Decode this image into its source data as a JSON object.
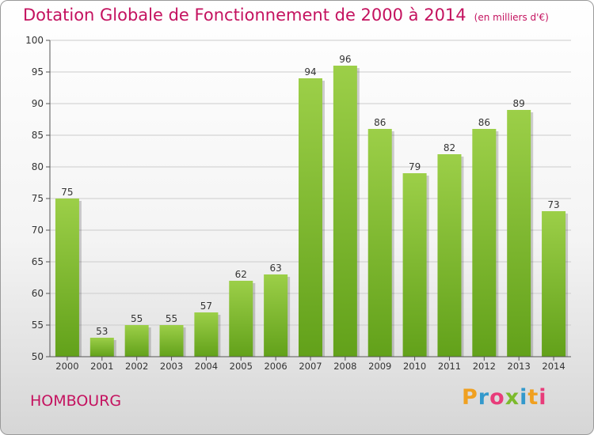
{
  "header": {
    "title": "Dotation Globale de Fonctionnement de 2000 à 2014",
    "unit": "(en milliers d'€)"
  },
  "commune": "HOMBOURG",
  "logo": {
    "text": "Proxiti",
    "colors": [
      "#f0a020",
      "#3399cc",
      "#e83c7a",
      "#7cba2c"
    ]
  },
  "chart_data": {
    "type": "bar",
    "title": "Dotation Globale de Fonctionnement de 2000 à 2014",
    "subtitle": "(en milliers d'€)",
    "xlabel": "",
    "ylabel": "",
    "categories": [
      "2000",
      "2001",
      "2002",
      "2003",
      "2004",
      "2005",
      "2006",
      "2007",
      "2008",
      "2009",
      "2010",
      "2011",
      "2012",
      "2013",
      "2014"
    ],
    "values": [
      75,
      53,
      55,
      55,
      57,
      62,
      63,
      94,
      96,
      86,
      79,
      82,
      86,
      89,
      73
    ],
    "ylim": [
      50,
      100
    ],
    "yticks": [
      50,
      55,
      60,
      65,
      70,
      75,
      80,
      85,
      90,
      95,
      100
    ],
    "grid": true,
    "legend": "none",
    "colors": {
      "bar_top": "#9ccf48",
      "bar_bottom": "#62a11a",
      "text": "#c4125f"
    }
  }
}
